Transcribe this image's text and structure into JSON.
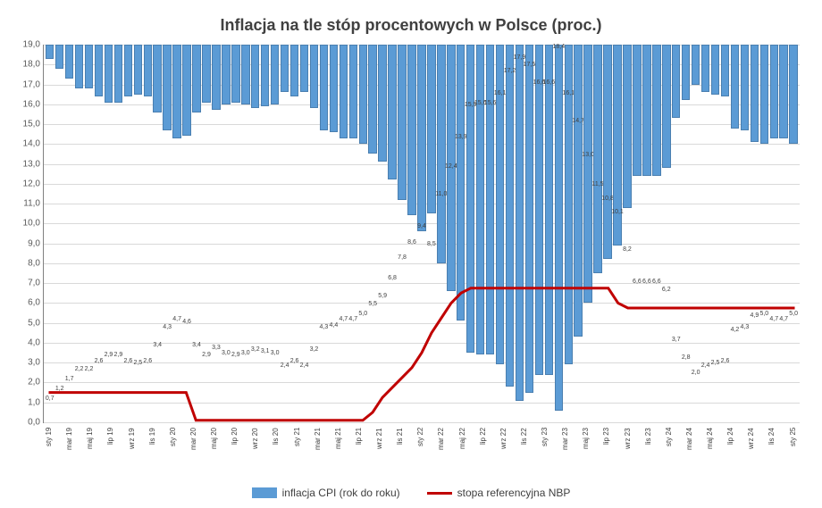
{
  "chart": {
    "type": "bar+line",
    "title": "Inflacja na tle stóp procentowych w Polsce (proc.)",
    "title_fontsize": 18,
    "background_color": "#ffffff",
    "grid_color": "#d9d9d9",
    "axis_color": "#808080",
    "text_color": "#404040",
    "ylim": [
      0,
      19
    ],
    "ytick_step": 1.0,
    "yticks": [
      "0,0",
      "1,0",
      "2,0",
      "3,0",
      "4,0",
      "5,0",
      "6,0",
      "7,0",
      "8,0",
      "9,0",
      "10,0",
      "11,0",
      "12,0",
      "13,0",
      "14,0",
      "15,0",
      "16,0",
      "17,0",
      "18,0",
      "19,0"
    ],
    "bar_color": "#5b9bd5",
    "bar_border_color": "#4a7fb0",
    "line_color": "#c00000",
    "line_width": 3,
    "categories": [
      "sty 19",
      "",
      "mar 19",
      "",
      "maj 19",
      "",
      "lip 19",
      "",
      "wrz 19",
      "",
      "lis 19",
      "",
      "sty 20",
      "",
      "mar 20",
      "",
      "maj 20",
      "",
      "lip 20",
      "",
      "wrz 20",
      "",
      "lis 20",
      "",
      "sty 21",
      "",
      "mar 21",
      "",
      "maj 21",
      "",
      "lip 21",
      "",
      "wrz 21",
      "",
      "lis 21",
      "",
      "sty 22",
      "",
      "mar 22",
      "",
      "maj 22",
      "",
      "lip 22",
      "",
      "wrz 22",
      "",
      "lis 22",
      "",
      "sty 23",
      "",
      "mar 23",
      "",
      "maj 23",
      "",
      "lip 23",
      "",
      "wrz 23",
      "",
      "lis 23",
      "",
      "sty 24",
      "",
      "mar 24",
      "",
      "maj 24",
      "",
      "lip 24",
      "",
      "wrz 24",
      "",
      "lis 24",
      "",
      "sty 25"
    ],
    "bar_values": [
      0.7,
      1.2,
      1.7,
      2.2,
      2.2,
      2.6,
      2.9,
      2.9,
      2.6,
      2.5,
      2.6,
      3.4,
      4.3,
      4.7,
      4.6,
      3.4,
      2.9,
      3.3,
      3.0,
      2.9,
      3.0,
      3.2,
      3.1,
      3.0,
      2.4,
      2.6,
      2.4,
      3.2,
      4.3,
      4.4,
      4.7,
      4.7,
      5.0,
      5.5,
      5.9,
      6.8,
      7.8,
      8.6,
      9.4,
      8.5,
      11.0,
      12.4,
      13.9,
      15.5,
      15.6,
      15.6,
      16.1,
      17.2,
      17.9,
      17.5,
      16.6,
      16.6,
      18.4,
      16.1,
      14.7,
      13.0,
      11.5,
      10.8,
      10.1,
      8.2,
      6.6,
      6.6,
      6.6,
      6.2,
      3.7,
      2.8,
      2.0,
      2.4,
      2.5,
      2.6,
      4.2,
      4.3,
      4.9,
      5.0,
      4.7,
      4.7,
      5.0
    ],
    "bar_labels": [
      "0,7",
      "1,2",
      "1,7",
      "2,2",
      "2,2",
      "2,6",
      "2,9",
      "2,9",
      "2,6",
      "2,5",
      "2,6",
      "3,4",
      "4,3",
      "4,7",
      "4,6",
      "3,4",
      "2,9",
      "3,3",
      "3,0",
      "2,9",
      "3,0",
      "3,2",
      "3,1",
      "3,0",
      "2,4",
      "2,6",
      "2,4",
      "3,2",
      "4,3",
      "4,4",
      "4,7",
      "4,7",
      "5,0",
      "5,5",
      "5,9",
      "6,8",
      "7,8",
      "8,6",
      "9,4",
      "8,5",
      "11,0",
      "12,4",
      "13,9",
      "15,5",
      "15,6",
      "15,6",
      "16,1",
      "17,2",
      "17,9",
      "17,5",
      "16,6",
      "16,6",
      "18,4",
      "16,1",
      "14,7",
      "13,0",
      "11,5",
      "10,8",
      "10,1",
      "8,2",
      "6,6",
      "6,6",
      "6,6",
      "6,2",
      "3,7",
      "2,8",
      "2,0",
      "2,4",
      "2,5",
      "2,6",
      "4,2",
      "4,3",
      "4,9",
      "5,0",
      "4,7",
      "4,7",
      "5,0"
    ],
    "line_values": [
      1.5,
      1.5,
      1.5,
      1.5,
      1.5,
      1.5,
      1.5,
      1.5,
      1.5,
      1.5,
      1.5,
      1.5,
      1.5,
      1.5,
      1.5,
      0.1,
      0.1,
      0.1,
      0.1,
      0.1,
      0.1,
      0.1,
      0.1,
      0.1,
      0.1,
      0.1,
      0.1,
      0.1,
      0.1,
      0.1,
      0.1,
      0.1,
      0.1,
      0.5,
      1.25,
      1.75,
      2.25,
      2.75,
      3.5,
      4.5,
      5.25,
      6.0,
      6.5,
      6.75,
      6.75,
      6.75,
      6.75,
      6.75,
      6.75,
      6.75,
      6.75,
      6.75,
      6.75,
      6.75,
      6.75,
      6.75,
      6.75,
      6.75,
      6.0,
      5.75,
      5.75,
      5.75,
      5.75,
      5.75,
      5.75,
      5.75,
      5.75,
      5.75,
      5.75,
      5.75,
      5.75,
      5.75,
      5.75,
      5.75,
      5.75,
      5.75,
      5.75
    ],
    "legend": {
      "bar_label": "inflacja CPI (rok do roku)",
      "line_label": "stopa referencyjna NBP"
    }
  }
}
